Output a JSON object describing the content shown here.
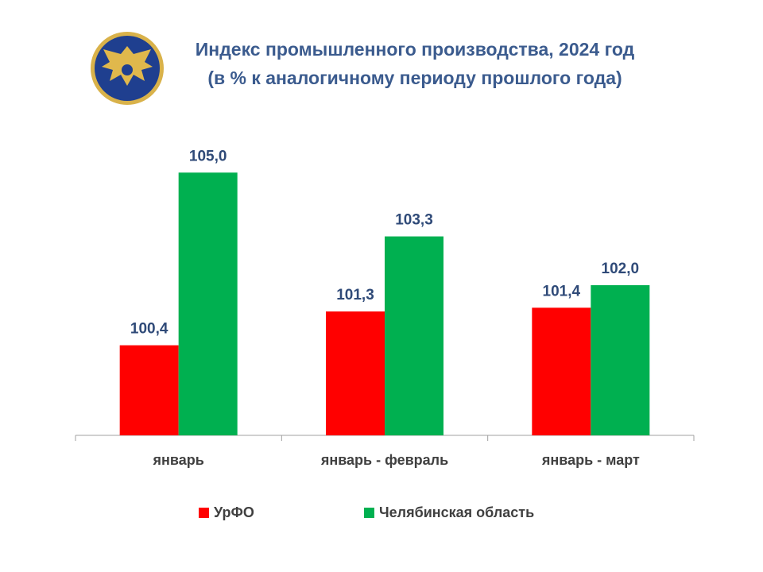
{
  "chart_data": {
    "type": "bar",
    "title": "Индекс промышленного производства, 2024 год",
    "subtitle": "(в % к аналогичному периоду прошлого года)",
    "categories": [
      "январь",
      "январь - февраль",
      "январь - март"
    ],
    "series": [
      {
        "name": "УрФО",
        "color": "#ff0000",
        "values": [
          100.4,
          101.3,
          101.4
        ],
        "value_labels": [
          "100,4",
          "101,3",
          "101,4"
        ]
      },
      {
        "name": "Челябинская область",
        "color": "#00b050",
        "values": [
          105.0,
          103.3,
          102.0
        ],
        "value_labels": [
          "105,0",
          "103,3",
          "102,0"
        ]
      }
    ],
    "ylim": [
      98,
      106
    ]
  }
}
